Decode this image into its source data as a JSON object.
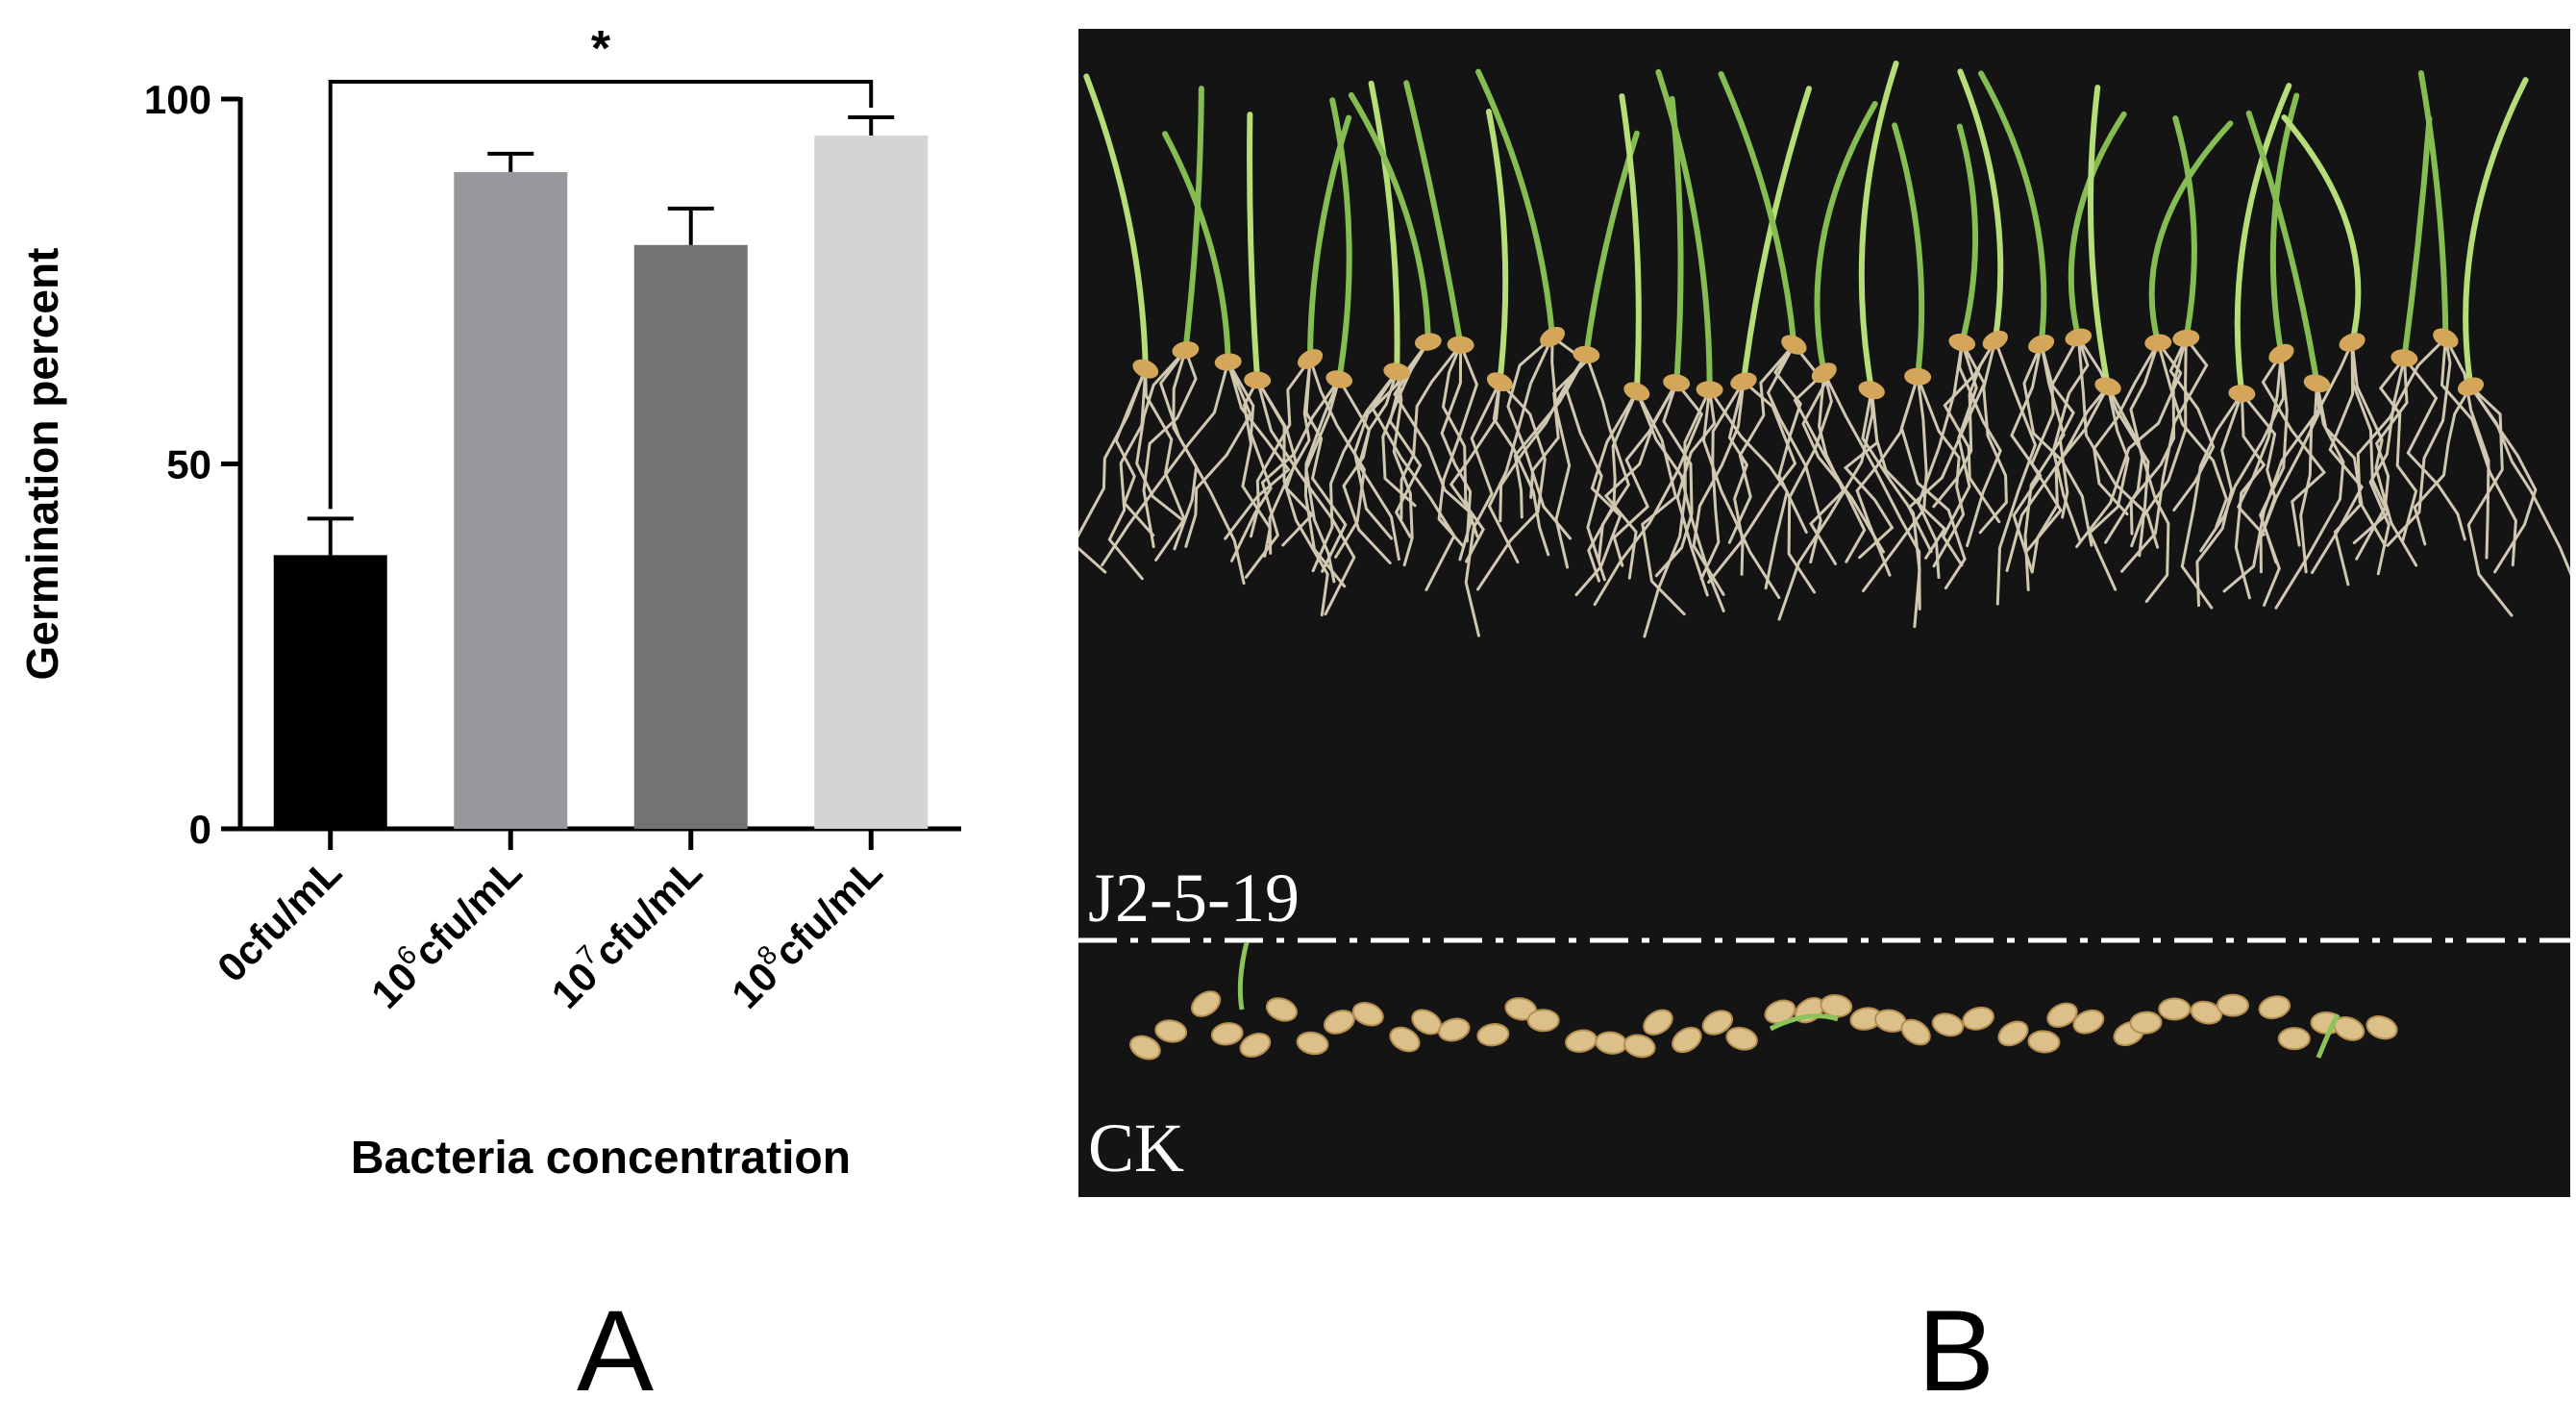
{
  "panels": {
    "a_label": "A",
    "b_label": "B"
  },
  "chart_data": {
    "type": "bar",
    "categories": [
      "0cfu/mL",
      "10^6 cfu/mL",
      "10^7 cfu/mL",
      "10^8 cfu/mL"
    ],
    "category_labels": [
      {
        "base": "0cfu/mL",
        "exp": "",
        "unit": ""
      },
      {
        "base": "10",
        "exp": "6",
        "unit": "cfu/mL"
      },
      {
        "base": "10",
        "exp": "7",
        "unit": "cfu/mL"
      },
      {
        "base": "10",
        "exp": "8",
        "unit": "cfu/mL"
      }
    ],
    "values": [
      37.5,
      90,
      80,
      95
    ],
    "errors": [
      5,
      2.5,
      5,
      2.5
    ],
    "colors": [
      "#000000",
      "#98979c",
      "#737373",
      "#d4d4d4"
    ],
    "xlabel": "Bacteria concentration",
    "ylabel": "Germination percent",
    "ylim": [
      0,
      100
    ],
    "yticks": [
      0,
      50,
      100
    ],
    "grid": false,
    "significance": {
      "from": 0,
      "to": 3,
      "label": "*"
    }
  },
  "photo": {
    "treatment_label": "J2-5-19",
    "control_label": "CK"
  }
}
